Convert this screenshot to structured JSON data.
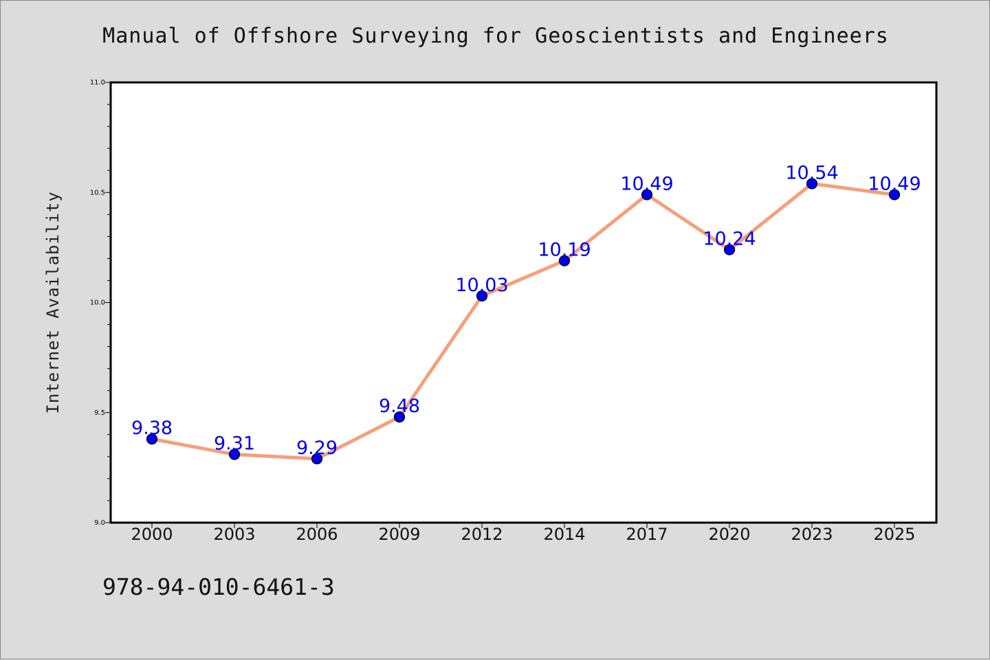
{
  "chart_data": {
    "type": "line",
    "title": "Manual of Offshore Surveying for Geoscientists and Engineers",
    "xlabel": "",
    "ylabel": "Internet Availability",
    "categories": [
      "2000",
      "2003",
      "2006",
      "2009",
      "2012",
      "2014",
      "2017",
      "2020",
      "2023",
      "2025"
    ],
    "series": [
      {
        "values": [
          9.38,
          9.31,
          9.29,
          9.48,
          10.03,
          10.19,
          10.49,
          10.24,
          10.54,
          10.49
        ],
        "value_labels": [
          "9.38",
          "9.31",
          "9.29",
          "9.48",
          "10.03",
          "10.19",
          "10.49",
          "10.24",
          "10.54",
          "10.49"
        ],
        "line_color": "#f4a07a",
        "marker_color": "#0000ee",
        "label_color": "#0000ee"
      }
    ],
    "ylim": [
      9.0,
      11.0
    ],
    "yticks": [
      "9.0",
      "9.5",
      "10.0",
      "10.5",
      "11.0"
    ],
    "grid": false,
    "legend": "none"
  },
  "footer": {
    "isbn": "978-94-010-6461-3"
  },
  "colors": {
    "background": "#dcdcdc",
    "plot_background": "#ffffff"
  }
}
